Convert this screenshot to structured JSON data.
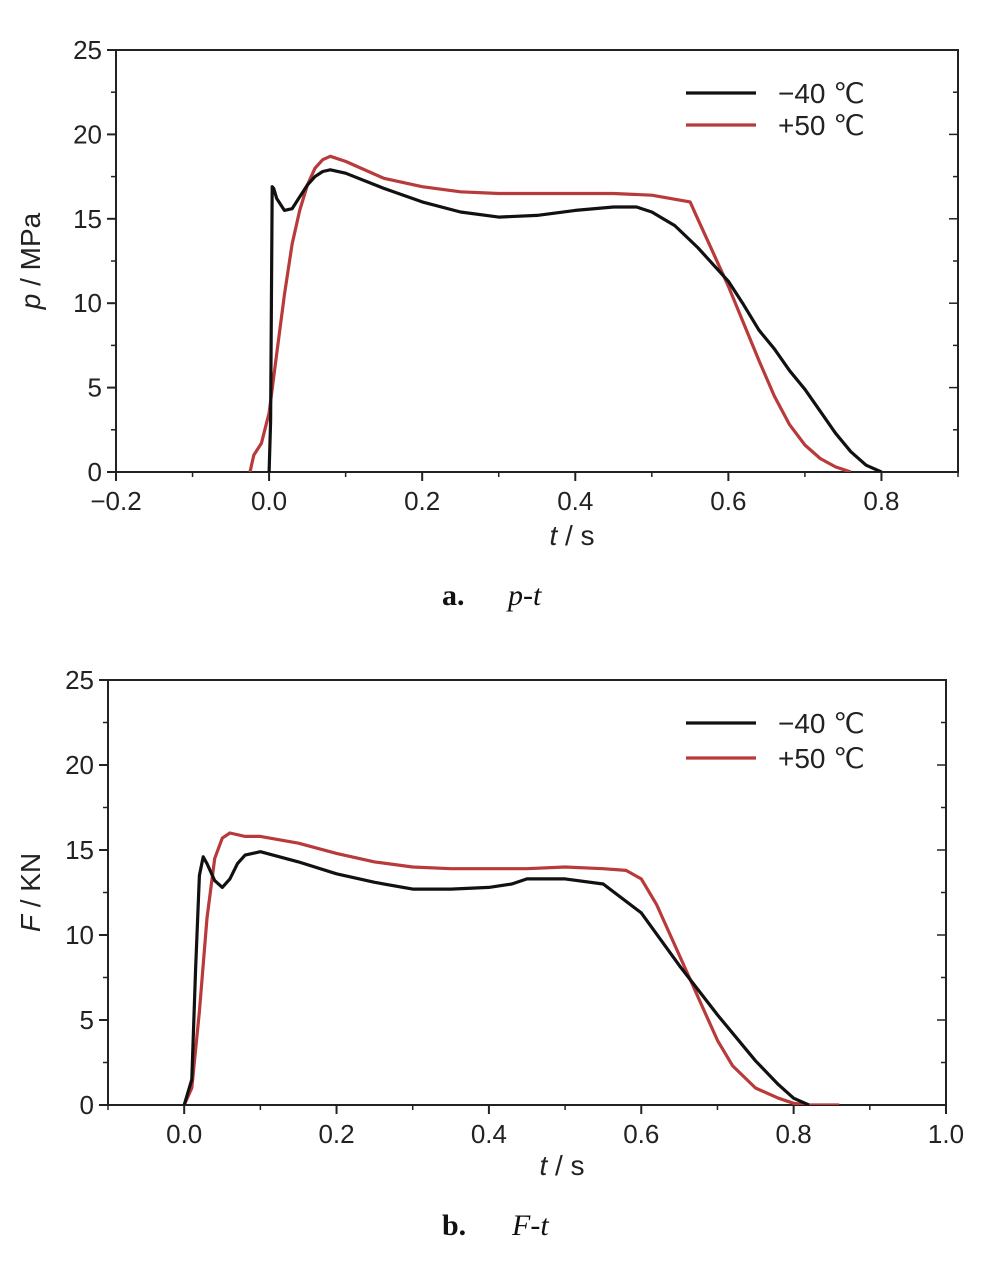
{
  "chart_data": [
    {
      "type": "line",
      "xlabel": "t / s",
      "ylabel": "p / MPa",
      "xlim": [
        -0.2,
        0.9
      ],
      "ylim": [
        0,
        25
      ],
      "xticks": [
        -0.2,
        0.0,
        0.2,
        0.4,
        0.6,
        0.8
      ],
      "yticks": [
        0,
        5,
        10,
        15,
        20,
        25
      ],
      "xtick_labels": [
        "−0.2",
        "0.0",
        "0.2",
        "0.4",
        "0.6",
        "0.8"
      ],
      "ytick_labels": [
        "0",
        "5",
        "10",
        "15",
        "20",
        "25"
      ],
      "legend_position": "top-right",
      "caption_letter": "a.",
      "caption_text": "p-t",
      "series": [
        {
          "name": "−40 ℃",
          "color": "#111111",
          "x": [
            0.0,
            0.002,
            0.003,
            0.004,
            0.006,
            0.01,
            0.02,
            0.03,
            0.04,
            0.05,
            0.06,
            0.07,
            0.08,
            0.1,
            0.15,
            0.2,
            0.25,
            0.3,
            0.35,
            0.4,
            0.45,
            0.48,
            0.5,
            0.53,
            0.56,
            0.6,
            0.62,
            0.64,
            0.66,
            0.68,
            0.7,
            0.72,
            0.74,
            0.76,
            0.78,
            0.8
          ],
          "y": [
            0.0,
            3.0,
            10.0,
            16.9,
            16.8,
            16.2,
            15.5,
            15.6,
            16.3,
            17.0,
            17.5,
            17.8,
            17.9,
            17.7,
            16.8,
            16.0,
            15.4,
            15.1,
            15.2,
            15.5,
            15.7,
            15.7,
            15.4,
            14.6,
            13.3,
            11.3,
            9.9,
            8.4,
            7.3,
            6.0,
            4.9,
            3.6,
            2.3,
            1.2,
            0.4,
            0.0
          ]
        },
        {
          "name": "+50 ℃",
          "color": "#b83a3a",
          "x": [
            -0.025,
            -0.02,
            -0.01,
            0.0,
            0.01,
            0.02,
            0.03,
            0.04,
            0.05,
            0.06,
            0.07,
            0.08,
            0.1,
            0.15,
            0.2,
            0.25,
            0.3,
            0.35,
            0.4,
            0.45,
            0.5,
            0.55,
            0.56,
            0.58,
            0.6,
            0.62,
            0.64,
            0.66,
            0.68,
            0.7,
            0.72,
            0.74,
            0.76
          ],
          "y": [
            0.0,
            1.0,
            1.7,
            3.5,
            7.0,
            10.5,
            13.5,
            15.5,
            17.0,
            18.0,
            18.5,
            18.7,
            18.4,
            17.4,
            16.9,
            16.6,
            16.5,
            16.5,
            16.5,
            16.5,
            16.4,
            16.0,
            15.0,
            13.0,
            11.0,
            8.8,
            6.6,
            4.5,
            2.8,
            1.6,
            0.8,
            0.3,
            0.0
          ]
        }
      ]
    },
    {
      "type": "line",
      "xlabel": "t / s",
      "ylabel": "F / KN",
      "xlim": [
        -0.1,
        1.0
      ],
      "ylim": [
        0,
        25
      ],
      "xticks": [
        0.0,
        0.2,
        0.4,
        0.6,
        0.8,
        1.0
      ],
      "yticks": [
        0,
        5,
        10,
        15,
        20,
        25
      ],
      "xtick_labels": [
        "0.0",
        "0.2",
        "0.4",
        "0.6",
        "0.8",
        "1.0"
      ],
      "ytick_labels": [
        "0",
        "5",
        "10",
        "15",
        "20",
        "25"
      ],
      "legend_position": "top-right",
      "caption_letter": "b.",
      "caption_text": "F-t",
      "series": [
        {
          "name": "−40 ℃",
          "color": "#111111",
          "x": [
            0.0,
            0.01,
            0.015,
            0.02,
            0.025,
            0.03,
            0.04,
            0.05,
            0.06,
            0.07,
            0.08,
            0.1,
            0.15,
            0.2,
            0.25,
            0.3,
            0.35,
            0.4,
            0.43,
            0.45,
            0.5,
            0.55,
            0.6,
            0.65,
            0.7,
            0.75,
            0.78,
            0.8,
            0.82
          ],
          "y": [
            0.0,
            1.5,
            8.0,
            13.5,
            14.6,
            14.2,
            13.2,
            12.8,
            13.3,
            14.2,
            14.7,
            14.9,
            14.3,
            13.6,
            13.1,
            12.7,
            12.7,
            12.8,
            13.0,
            13.3,
            13.3,
            13.0,
            11.3,
            8.2,
            5.3,
            2.6,
            1.2,
            0.4,
            0.0
          ]
        },
        {
          "name": "+50 ℃",
          "color": "#b83a3a",
          "x": [
            0.0,
            0.01,
            0.02,
            0.03,
            0.04,
            0.05,
            0.06,
            0.08,
            0.1,
            0.15,
            0.2,
            0.25,
            0.3,
            0.35,
            0.4,
            0.45,
            0.5,
            0.55,
            0.58,
            0.6,
            0.62,
            0.65,
            0.68,
            0.7,
            0.72,
            0.75,
            0.78,
            0.8,
            0.82,
            0.86
          ],
          "y": [
            0.0,
            1.0,
            5.5,
            11.0,
            14.5,
            15.7,
            16.0,
            15.8,
            15.8,
            15.4,
            14.8,
            14.3,
            14.0,
            13.9,
            13.9,
            13.9,
            14.0,
            13.9,
            13.8,
            13.3,
            11.8,
            8.8,
            5.8,
            3.8,
            2.3,
            1.0,
            0.4,
            0.1,
            0.0,
            0.0
          ]
        }
      ]
    }
  ]
}
